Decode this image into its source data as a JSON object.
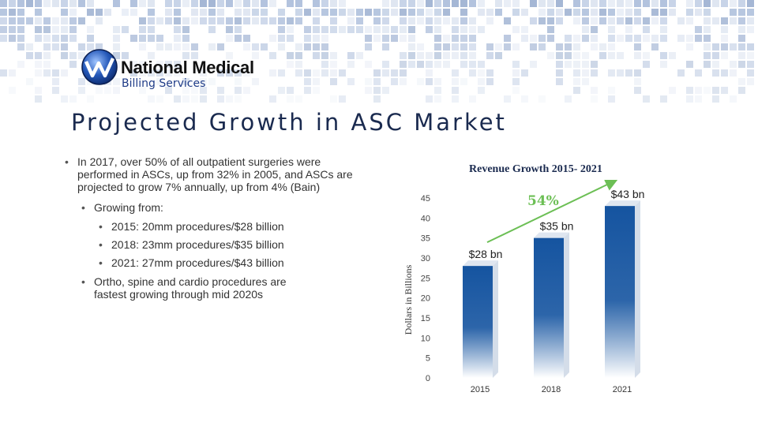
{
  "brand": {
    "name_line1": "National Medical",
    "name_line2": "Billing Services"
  },
  "slide": {
    "title": "Projected Growth in ASC Market"
  },
  "bullets": {
    "main": "In 2017, over 50% of all outpatient surgeries were performed in ASCs, up from 32% in 2005, and ASCs are projected to grow 7% annually, up from 4% (Bain)",
    "growing_from": "Growing from:",
    "y2015": "2015: 20mm procedures/$28 billion",
    "y2018": "2018: 23mm procedures/$35 billion",
    "y2021": "2021: 27mm procedures/$43 billion",
    "ortho": "Ortho, spine and cardio procedures are fastest growing through mid 2020s"
  },
  "colors": {
    "bar": "#1554a0",
    "accent": "#6cbf55",
    "title": "#1a2a4f"
  },
  "chart_data": {
    "type": "bar",
    "title": "Revenue Growth 2015- 2021",
    "categories": [
      "2015",
      "2018",
      "2021"
    ],
    "values": [
      28,
      35,
      43
    ],
    "data_labels": [
      "$28 bn",
      "$35 bn",
      "$43 bn"
    ],
    "ylabel": "Dollars in Billions",
    "xlabel": "",
    "ylim": [
      0,
      45
    ],
    "yticks": [
      0,
      5,
      10,
      15,
      20,
      25,
      30,
      35,
      40,
      45
    ],
    "annotation": {
      "text": "54%",
      "from": "2015",
      "to": "2021"
    }
  }
}
